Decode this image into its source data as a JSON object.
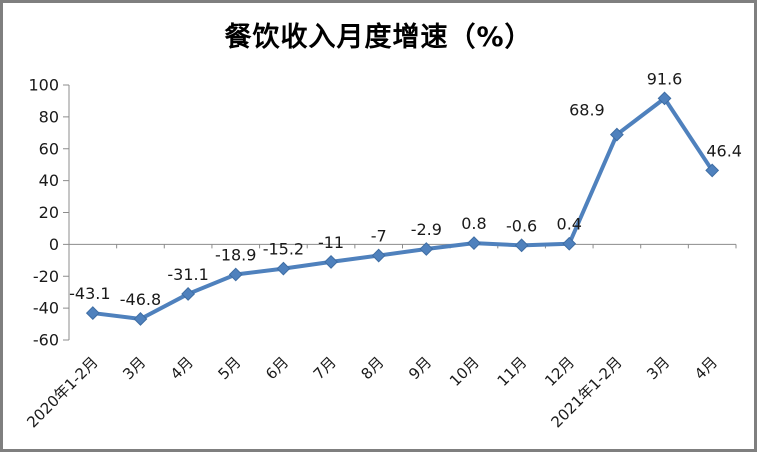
{
  "frame": {
    "background_color": "#FFFFFF",
    "border_color": "#7F7F7F"
  },
  "chart_data": {
    "type": "line",
    "title": "餐饮收入月度增速（%）",
    "categories": [
      "2020年1-2月",
      "3月",
      "4月",
      "5月",
      "6月",
      "7月",
      "8月",
      "9月",
      "10月",
      "11月",
      "12月",
      "2021年1-2月",
      "3月",
      "4月"
    ],
    "values": [
      -43.1,
      -46.8,
      -31.1,
      -18.9,
      -15.2,
      -11,
      -7,
      -2.9,
      0.8,
      -0.6,
      0.4,
      68.9,
      91.6,
      46.4
    ],
    "point_labels": [
      "-43.1",
      "-46.8",
      "-31.1",
      "-18.9",
      "-15.2",
      "-11",
      "-7",
      "-2.9",
      "0.8",
      "-0.6",
      "0.4",
      "68.9",
      "91.6",
      "46.4"
    ],
    "xlabel": "",
    "ylabel": "",
    "ylim": [
      -60,
      100
    ],
    "yticks": [
      100,
      80,
      60,
      40,
      20,
      0,
      -20,
      -40,
      -60
    ],
    "grid": false,
    "legend_position": "none",
    "line_color": "#4F81BD",
    "marker": "diamond",
    "marker_edge_color": "#3E6DA3",
    "axis_color": "#8C8C8C",
    "text_color": "#1A1A1A",
    "x_labels_rotation_deg": -45,
    "category_axis_position": 0
  }
}
